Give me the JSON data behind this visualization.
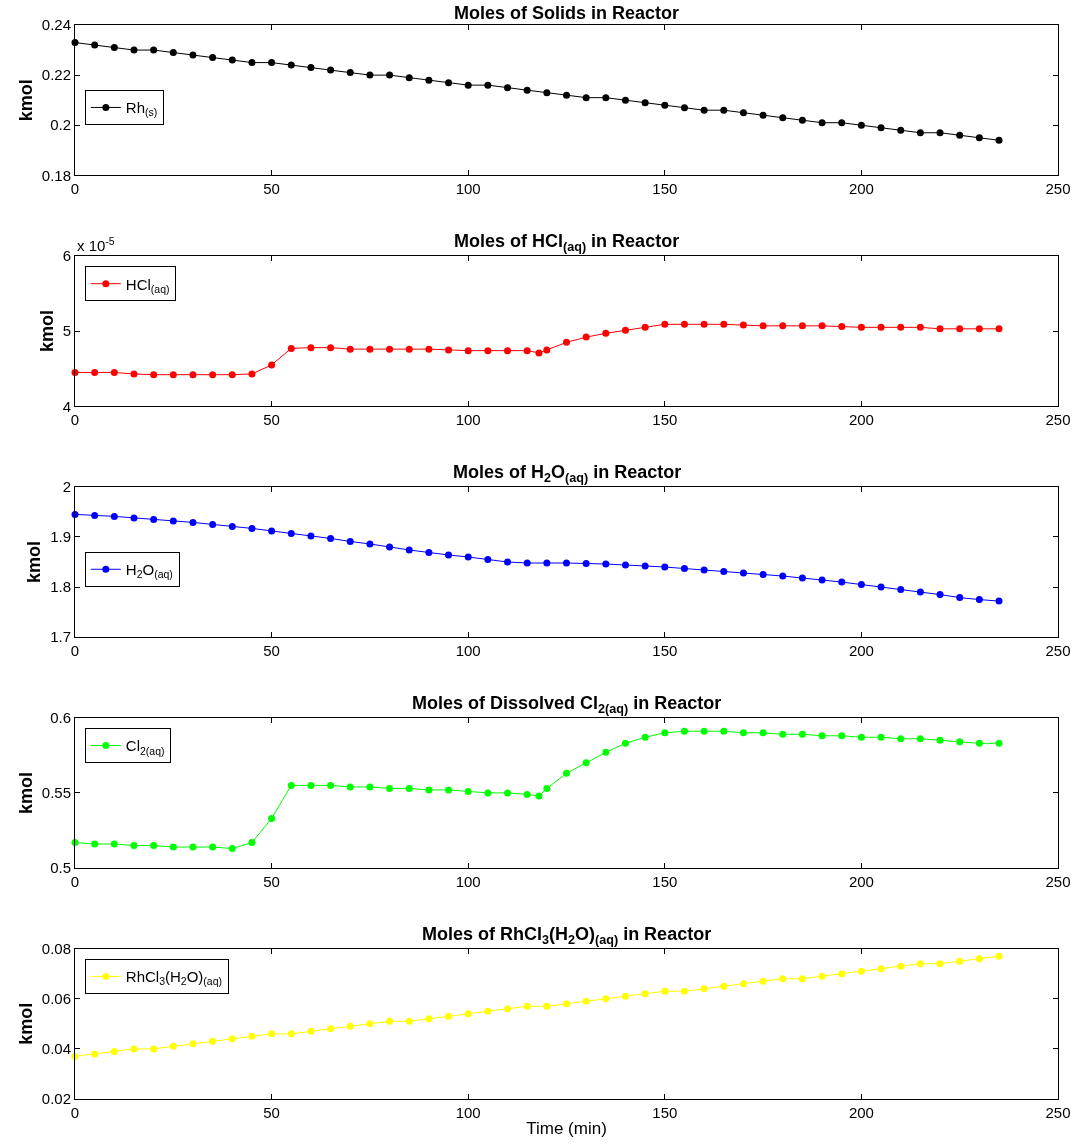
{
  "chart_data": [
    {
      "type": "line",
      "title": "Moles of Solids in Reactor",
      "ylabel": "kmol",
      "legend": "left",
      "marker": "circle",
      "xlim": [
        0,
        250
      ],
      "xticks": [
        0,
        50,
        100,
        150,
        200,
        250
      ],
      "ylim": [
        0.18,
        0.24
      ],
      "yticks": [
        0.18,
        0.2,
        0.22,
        0.24
      ],
      "x": [
        0,
        5,
        10,
        15,
        20,
        25,
        30,
        35,
        40,
        45,
        50,
        55,
        60,
        65,
        70,
        75,
        80,
        85,
        90,
        95,
        100,
        105,
        110,
        115,
        120,
        125,
        130,
        135,
        140,
        145,
        150,
        155,
        160,
        165,
        170,
        175,
        180,
        185,
        190,
        195,
        200,
        205,
        210,
        215,
        220,
        225,
        230,
        235
      ],
      "series": [
        {
          "name": "Rh$_{(s)}$",
          "color": "#000000",
          "values": [
            0.233,
            0.232,
            0.231,
            0.23,
            0.23,
            0.229,
            0.228,
            0.227,
            0.226,
            0.225,
            0.225,
            0.224,
            0.223,
            0.222,
            0.221,
            0.22,
            0.22,
            0.219,
            0.218,
            0.217,
            0.216,
            0.216,
            0.215,
            0.214,
            0.213,
            0.212,
            0.211,
            0.211,
            0.21,
            0.209,
            0.208,
            0.207,
            0.206,
            0.206,
            0.205,
            0.204,
            0.203,
            0.202,
            0.201,
            0.201,
            0.2,
            0.199,
            0.198,
            0.197,
            0.197,
            0.196,
            0.195,
            0.194
          ]
        }
      ]
    },
    {
      "type": "line",
      "title": "Moles of HCl$_{(aq)}$ in Reactor",
      "ylabel": "kmol",
      "legend": "top left",
      "marker": "circle",
      "xlim": [
        0,
        250
      ],
      "xticks": [
        0,
        50,
        100,
        150,
        200,
        250
      ],
      "ylim": [
        4,
        6
      ],
      "yticks": [
        4,
        5,
        6
      ],
      "annotations": [
        "x 10$^{-5}$"
      ],
      "x": [
        0,
        5,
        10,
        15,
        20,
        25,
        30,
        35,
        40,
        45,
        50,
        55,
        60,
        65,
        70,
        75,
        80,
        85,
        90,
        95,
        100,
        105,
        110,
        115,
        118,
        120,
        125,
        130,
        135,
        140,
        145,
        150,
        155,
        160,
        165,
        170,
        175,
        180,
        185,
        190,
        195,
        200,
        205,
        210,
        215,
        220,
        225,
        230,
        235
      ],
      "series": [
        {
          "name": "HCl$_{(aq)}$",
          "color": "#ff0000",
          "values": [
            4.45,
            4.45,
            4.45,
            4.43,
            4.42,
            4.42,
            4.42,
            4.42,
            4.42,
            4.43,
            4.55,
            4.77,
            4.78,
            4.78,
            4.76,
            4.76,
            4.76,
            4.76,
            4.76,
            4.75,
            4.74,
            4.74,
            4.74,
            4.74,
            4.71,
            4.75,
            4.85,
            4.92,
            4.97,
            5.01,
            5.05,
            5.09,
            5.09,
            5.09,
            5.09,
            5.08,
            5.07,
            5.07,
            5.07,
            5.07,
            5.06,
            5.05,
            5.05,
            5.05,
            5.05,
            5.03,
            5.03,
            5.03,
            5.03
          ]
        }
      ]
    },
    {
      "type": "line",
      "title": "Moles of H$_{2}$O$_{(aq)}$ in Reactor",
      "ylabel": "kmol",
      "legend": "left",
      "marker": "circle",
      "xlim": [
        0,
        250
      ],
      "xticks": [
        0,
        50,
        100,
        150,
        200,
        250
      ],
      "ylim": [
        1.7,
        2
      ],
      "yticks": [
        1.7,
        1.8,
        1.9,
        2
      ],
      "x": [
        0,
        5,
        10,
        15,
        20,
        25,
        30,
        35,
        40,
        45,
        50,
        55,
        60,
        65,
        70,
        75,
        80,
        85,
        90,
        95,
        100,
        105,
        110,
        115,
        120,
        125,
        130,
        135,
        140,
        145,
        150,
        155,
        160,
        165,
        170,
        175,
        180,
        185,
        190,
        195,
        200,
        205,
        210,
        215,
        220,
        225,
        230,
        235
      ],
      "series": [
        {
          "name": "H$_{2}$O$_{(aq)}$",
          "color": "#0000ff",
          "values": [
            1.945,
            1.943,
            1.941,
            1.938,
            1.935,
            1.932,
            1.929,
            1.925,
            1.921,
            1.917,
            1.912,
            1.907,
            1.902,
            1.897,
            1.891,
            1.886,
            1.88,
            1.874,
            1.869,
            1.864,
            1.86,
            1.855,
            1.85,
            1.848,
            1.848,
            1.848,
            1.847,
            1.846,
            1.844,
            1.842,
            1.84,
            1.837,
            1.834,
            1.831,
            1.828,
            1.825,
            1.822,
            1.818,
            1.814,
            1.81,
            1.805,
            1.8,
            1.795,
            1.79,
            1.785,
            1.779,
            1.775,
            1.772
          ]
        }
      ]
    },
    {
      "type": "line",
      "title": "Moles of Dissolved Cl$_{2(aq)}$ in Reactor",
      "ylabel": "kmol",
      "legend": "top left",
      "marker": "circle",
      "xlim": [
        0,
        250
      ],
      "xticks": [
        0,
        50,
        100,
        150,
        200,
        250
      ],
      "ylim": [
        0.5,
        0.6
      ],
      "yticks": [
        0.5,
        0.55,
        0.6
      ],
      "x": [
        0,
        5,
        10,
        15,
        20,
        25,
        30,
        35,
        40,
        45,
        50,
        55,
        60,
        65,
        70,
        75,
        80,
        85,
        90,
        95,
        100,
        105,
        110,
        115,
        118,
        120,
        125,
        130,
        135,
        140,
        145,
        150,
        155,
        160,
        165,
        170,
        175,
        180,
        185,
        190,
        195,
        200,
        205,
        210,
        215,
        220,
        225,
        230,
        235
      ],
      "series": [
        {
          "name": "Cl$_{2(aq)}$",
          "color": "#00ff00",
          "values": [
            0.517,
            0.516,
            0.516,
            0.515,
            0.515,
            0.514,
            0.514,
            0.514,
            0.513,
            0.517,
            0.533,
            0.555,
            0.555,
            0.555,
            0.554,
            0.554,
            0.553,
            0.553,
            0.552,
            0.552,
            0.551,
            0.55,
            0.55,
            0.549,
            0.548,
            0.553,
            0.563,
            0.57,
            0.577,
            0.583,
            0.587,
            0.59,
            0.591,
            0.591,
            0.591,
            0.59,
            0.59,
            0.589,
            0.589,
            0.588,
            0.588,
            0.587,
            0.587,
            0.586,
            0.586,
            0.585,
            0.584,
            0.583,
            0.583
          ]
        }
      ]
    },
    {
      "type": "line",
      "title": "Moles of RhCl$_{3}$(H$_{2}$O)$_{(aq)}$ in Reactor",
      "xlabel": "Time (min)",
      "ylabel": "kmol",
      "legend": "top left",
      "marker": "circle",
      "xlim": [
        0,
        250
      ],
      "xticks": [
        0,
        50,
        100,
        150,
        200,
        250
      ],
      "ylim": [
        0.02,
        0.08
      ],
      "yticks": [
        0.02,
        0.04,
        0.06,
        0.08
      ],
      "x": [
        0,
        5,
        10,
        15,
        20,
        25,
        30,
        35,
        40,
        45,
        50,
        55,
        60,
        65,
        70,
        75,
        80,
        85,
        90,
        95,
        100,
        105,
        110,
        115,
        120,
        125,
        130,
        135,
        140,
        145,
        150,
        155,
        160,
        165,
        170,
        175,
        180,
        185,
        190,
        195,
        200,
        205,
        210,
        215,
        220,
        225,
        230,
        235
      ],
      "series": [
        {
          "name": "RhCl$_{3}$(H$_{2}$O)$_{(aq)}$",
          "color": "#ffff00",
          "values": [
            0.037,
            0.038,
            0.039,
            0.04,
            0.04,
            0.041,
            0.042,
            0.043,
            0.044,
            0.045,
            0.046,
            0.046,
            0.047,
            0.048,
            0.049,
            0.05,
            0.051,
            0.051,
            0.052,
            0.053,
            0.054,
            0.055,
            0.056,
            0.057,
            0.057,
            0.058,
            0.059,
            0.06,
            0.061,
            0.062,
            0.063,
            0.063,
            0.064,
            0.065,
            0.066,
            0.067,
            0.068,
            0.068,
            0.069,
            0.07,
            0.071,
            0.072,
            0.073,
            0.074,
            0.074,
            0.075,
            0.076,
            0.077
          ]
        }
      ]
    }
  ]
}
